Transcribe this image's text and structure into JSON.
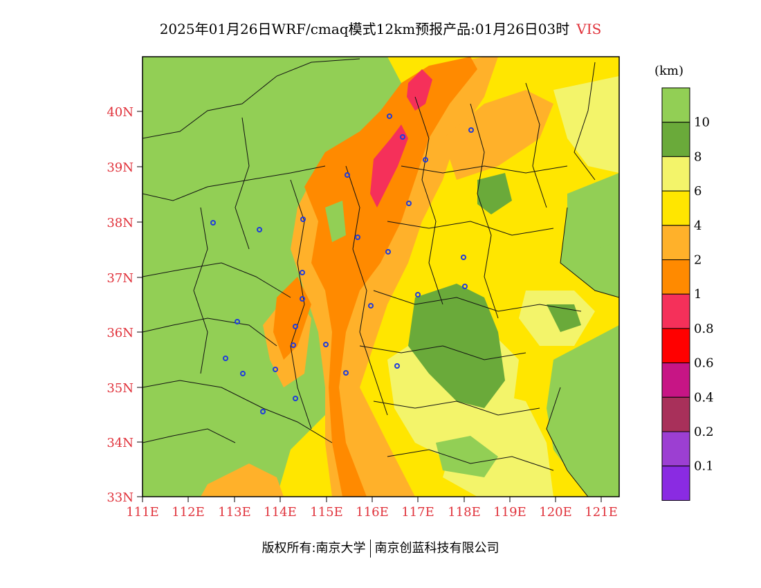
{
  "title": {
    "main": "2025年01月26日WRF/cmaq模式12km预报产品:01月26日03时",
    "variable": "VIS"
  },
  "map": {
    "lat_ticks": [
      "40N",
      "39N",
      "38N",
      "37N",
      "36N",
      "35N",
      "34N",
      "33N"
    ],
    "lon_ticks": [
      "111E",
      "112E",
      "113E",
      "114E",
      "115E",
      "116E",
      "117E",
      "118E",
      "119E",
      "120E",
      "121E"
    ],
    "tick_color": "#e0313a"
  },
  "legend": {
    "unit": "(km)",
    "labels": [
      "10",
      "8",
      "6",
      "4",
      "2",
      "1",
      "0.8",
      "0.6",
      "0.4",
      "0.2",
      "0.1"
    ],
    "colors": [
      "#92cf55",
      "#6aaa3a",
      "#f3f46a",
      "#ffe600",
      "#ffb12a",
      "#ff8a00",
      "#f5305a",
      "#ff0000",
      "#c71585",
      "#a8305a",
      "#9c3fd2",
      "#8a2be2"
    ]
  },
  "footer": {
    "left": "版权所有:南京大学",
    "right": "南京创蓝科技有限公司"
  }
}
